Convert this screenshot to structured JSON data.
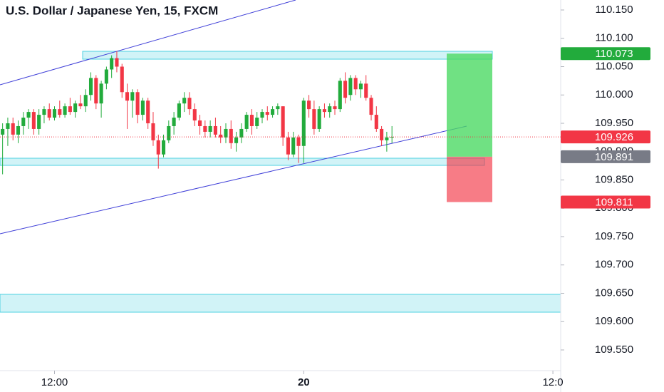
{
  "chart_data": {
    "type": "candlestick",
    "title": "U.S. Dollar / Japanese Yen, 15, FXCM",
    "x": [
      0,
      1,
      2,
      3,
      4,
      5,
      6,
      7,
      8,
      9,
      10,
      11,
      12,
      13,
      14,
      15,
      16,
      17,
      18,
      19,
      20,
      21,
      22,
      23,
      24,
      25,
      26,
      27,
      28,
      29,
      30,
      31,
      32,
      33,
      34,
      35,
      36,
      37,
      38,
      39,
      40,
      41,
      42,
      43,
      44,
      45,
      46,
      47,
      48,
      49,
      50,
      51,
      52,
      53,
      54,
      55,
      56,
      57,
      58,
      59,
      60,
      61,
      62,
      63,
      64,
      65,
      66,
      67,
      68,
      69,
      70,
      71,
      72,
      73,
      74,
      75
    ],
    "open": [
      109.93,
      109.94,
      109.95,
      109.93,
      109.945,
      109.96,
      109.97,
      109.94,
      109.965,
      109.975,
      109.96,
      109.975,
      109.965,
      109.98,
      109.97,
      109.985,
      109.98,
      110.0,
      110.03,
      109.985,
      110.02,
      110.045,
      110.065,
      110.05,
      110.005,
      109.99,
      110.005,
      109.965,
      109.99,
      109.95,
      109.92,
      109.895,
      109.92,
      109.945,
      109.96,
      109.985,
      109.995,
      109.975,
      109.955,
      109.945,
      109.935,
      109.945,
      109.93,
      109.925,
      109.94,
      109.915,
      109.925,
      109.94,
      109.965,
      109.945,
      109.96,
      109.97,
      109.965,
      109.975,
      109.98,
      109.925,
      109.895,
      109.925,
      109.91,
      109.99,
      109.975,
      109.94,
      109.975,
      109.97,
      109.98,
      109.975,
      110.025,
      110.0,
      110.03,
      110.01,
      110.02,
      109.995,
      109.965,
      109.94,
      109.92,
      109.925
    ],
    "high": [
      109.95,
      109.96,
      109.96,
      109.955,
      109.97,
      109.975,
      109.975,
      109.975,
      109.98,
      109.985,
      109.98,
      109.99,
      109.985,
      109.995,
      109.99,
      110.0,
      110.01,
      110.04,
      110.035,
      110.025,
      110.05,
      110.07,
      110.077,
      110.055,
      110.02,
      110.01,
      110.01,
      109.995,
      109.995,
      109.97,
      109.93,
      109.93,
      109.955,
      109.97,
      109.99,
      110.005,
      110.005,
      109.985,
      109.965,
      109.955,
      109.955,
      109.96,
      109.945,
      109.95,
      109.955,
      109.935,
      109.95,
      109.97,
      109.975,
      109.97,
      109.975,
      109.98,
      109.98,
      109.985,
      109.98,
      109.935,
      109.935,
      109.93,
      109.995,
      110.0,
      109.99,
      109.98,
      109.985,
      109.985,
      109.99,
      110.03,
      110.04,
      110.035,
      110.035,
      110.025,
      110.035,
      110.0,
      109.98,
      109.945,
      109.935,
      109.945
    ],
    "low": [
      109.86,
      109.91,
      109.92,
      109.915,
      109.93,
      109.94,
      109.93,
      109.93,
      109.95,
      109.955,
      109.955,
      109.96,
      109.96,
      109.965,
      109.96,
      109.975,
      109.97,
      109.99,
      109.975,
      109.96,
      110.01,
      110.03,
      110.04,
      109.995,
      109.94,
      109.96,
      109.95,
      109.955,
      109.94,
      109.91,
      109.87,
      109.89,
      109.915,
      109.93,
      109.955,
      109.97,
      109.965,
      109.945,
      109.93,
      109.925,
      109.925,
      109.925,
      109.915,
      109.915,
      109.905,
      109.9,
      109.915,
      109.935,
      109.93,
      109.94,
      109.95,
      109.955,
      109.96,
      109.965,
      109.91,
      109.885,
      109.89,
      109.88,
      109.88,
      109.96,
      109.93,
      109.935,
      109.96,
      109.96,
      109.965,
      109.97,
      109.985,
      109.99,
      110.0,
      109.995,
      109.99,
      109.955,
      109.935,
      109.91,
      109.9,
      109.915
    ],
    "close": [
      109.94,
      109.95,
      109.93,
      109.945,
      109.96,
      109.97,
      109.94,
      109.965,
      109.975,
      109.96,
      109.975,
      109.965,
      109.98,
      109.97,
      109.985,
      109.98,
      110.0,
      110.03,
      109.985,
      110.02,
      110.045,
      110.065,
      110.05,
      110.005,
      109.99,
      110.005,
      109.965,
      109.99,
      109.95,
      109.92,
      109.895,
      109.92,
      109.945,
      109.96,
      109.985,
      109.995,
      109.975,
      109.955,
      109.945,
      109.935,
      109.945,
      109.93,
      109.925,
      109.94,
      109.915,
      109.925,
      109.94,
      109.965,
      109.945,
      109.96,
      109.97,
      109.965,
      109.975,
      109.98,
      109.925,
      109.895,
      109.925,
      109.91,
      109.99,
      109.975,
      109.94,
      109.975,
      109.97,
      109.98,
      109.975,
      110.025,
      109.995,
      110.03,
      110.01,
      110.02,
      109.995,
      109.965,
      109.94,
      109.92,
      109.925,
      109.926
    ],
    "up_color": "#22ab3c",
    "down_color": "#f23645",
    "xlim": [
      -0.5,
      107.5
    ],
    "xticks": [
      {
        "value": 10,
        "label": "12:00"
      },
      {
        "value": 58,
        "label": "20"
      },
      {
        "value": 106,
        "label": "12:0"
      }
    ],
    "ylim": [
      109.5135,
      110.1676
    ],
    "yticks": [
      {
        "value": 110.15,
        "label": "110.150"
      },
      {
        "value": 110.1,
        "label": "110.100"
      },
      {
        "value": 110.05,
        "label": "110.050"
      },
      {
        "value": 110.0,
        "label": "110.000"
      },
      {
        "value": 109.95,
        "label": "109.950"
      },
      {
        "value": 109.9,
        "label": "109.900"
      },
      {
        "value": 109.85,
        "label": "109.850"
      },
      {
        "value": 109.8,
        "label": "109.800"
      },
      {
        "value": 109.75,
        "label": "109.750"
      },
      {
        "value": 109.7,
        "label": "109.700"
      },
      {
        "value": 109.65,
        "label": "109.650"
      },
      {
        "value": 109.6,
        "label": "109.600"
      },
      {
        "value": 109.55,
        "label": "109.550"
      }
    ],
    "price_labels": [
      {
        "value": 110.073,
        "color": "#22ab3c"
      },
      {
        "value": 109.926,
        "color": "#f23645"
      },
      {
        "value": 109.891,
        "color": "#787b86"
      },
      {
        "value": 109.811,
        "color": "#f23645"
      }
    ]
  }
}
